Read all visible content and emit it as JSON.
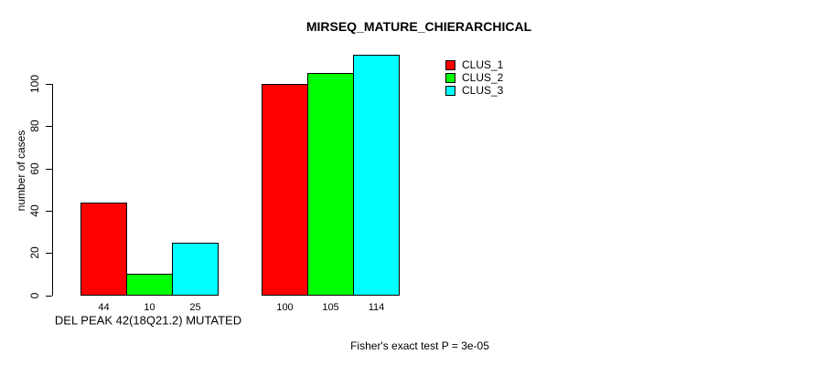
{
  "chart_data": {
    "type": "bar",
    "title": "MIRSEQ_MATURE_CHIERARCHICAL",
    "ylabel": "number of cases",
    "xlabel": "DEL PEAK 42(18Q21.2) MUTATED",
    "annotation": "Fisher's exact test P = 3e-05",
    "categories": [
      "DEL PEAK 42(18Q21.2) MUTATED",
      ""
    ],
    "series": [
      {
        "name": "CLUS_1",
        "color": "#ff0000",
        "values": [
          44,
          100
        ]
      },
      {
        "name": "CLUS_2",
        "color": "#00ff00",
        "values": [
          10,
          105
        ]
      },
      {
        "name": "CLUS_3",
        "color": "#00ffff",
        "values": [
          25,
          114
        ]
      }
    ],
    "yticks": [
      0,
      20,
      40,
      60,
      80,
      100
    ],
    "ylim": [
      0,
      114
    ],
    "bar_value_labels": true,
    "legend_position": "top-right",
    "grid": false,
    "background": "#ffffff",
    "bar_border_color": "#000000",
    "axis_color": "#000000"
  }
}
